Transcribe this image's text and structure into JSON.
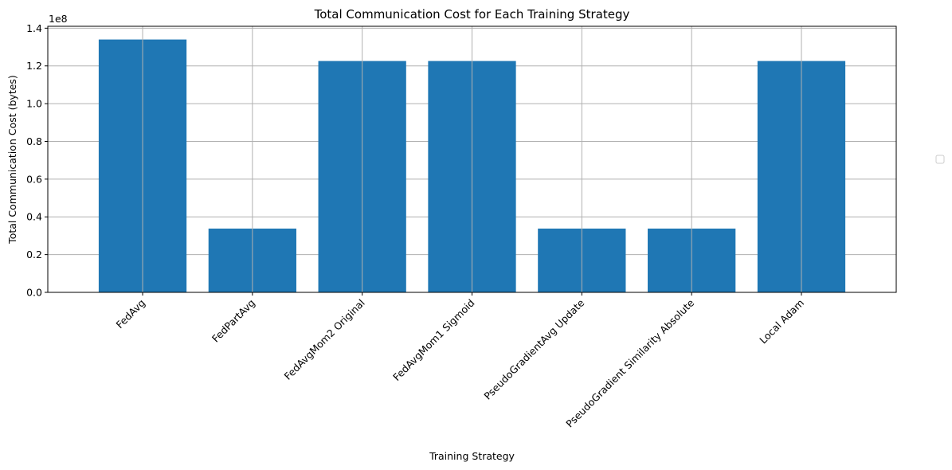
{
  "chart_data": {
    "type": "bar",
    "title": "Total Communication Cost for Each Training Strategy",
    "xlabel": "Training Strategy",
    "ylabel": "Total Communication Cost (bytes)",
    "y_scale_label": "1e8",
    "y_multiplier": 100000000,
    "categories": [
      "FedAvg",
      "FedPartAvg",
      "FedAvgMom2 Original",
      "FedAvgMom1 Sigmoid",
      "PseudoGradientAvg Update",
      "PseudoGradient Similarity Absolute",
      "Local Adam"
    ],
    "values": [
      134000000,
      33800000,
      122600000,
      122600000,
      33800000,
      33800000,
      122600000
    ],
    "ylim": [
      0,
      141000000
    ],
    "yticks": [
      0,
      20000000,
      40000000,
      60000000,
      80000000,
      100000000,
      120000000,
      140000000
    ],
    "ytick_labels": [
      "0.0",
      "0.2",
      "0.4",
      "0.6",
      "0.8",
      "1.0",
      "1.2",
      "1.4"
    ],
    "grid": true,
    "legend": "right (empty)",
    "colors": {
      "bar": "#1f77b4",
      "grid": "#b0b0b0",
      "axis": "#000000"
    }
  }
}
